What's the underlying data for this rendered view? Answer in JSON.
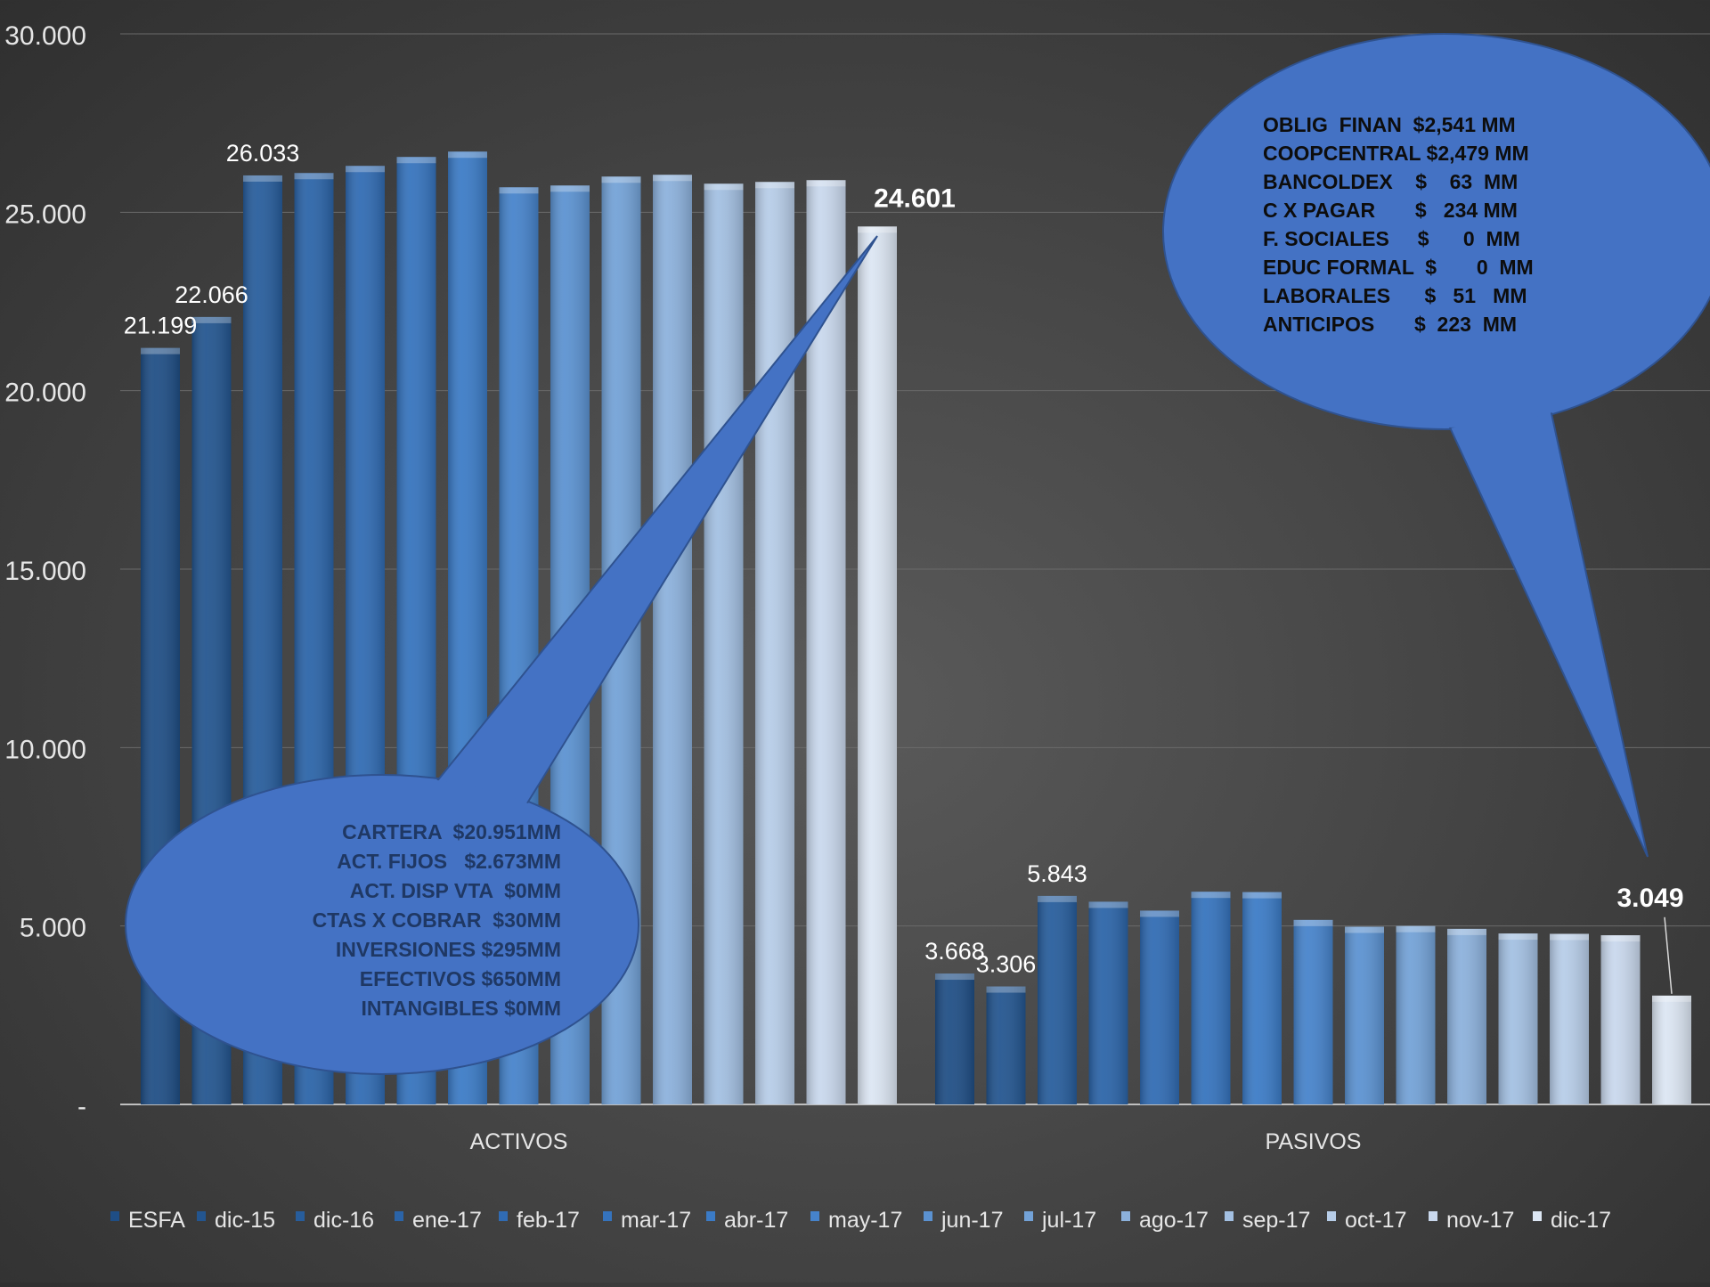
{
  "chart_data": {
    "type": "bar",
    "categories": [
      "ACTIVOS",
      "PASIVOS"
    ],
    "series": [
      {
        "name": "ESFA",
        "color": "#1f4e85",
        "values": [
          21199,
          3668
        ]
      },
      {
        "name": "dic-15",
        "color": "#23558f",
        "values": [
          22066,
          3306
        ]
      },
      {
        "name": "dic-16",
        "color": "#275d9c",
        "values": [
          26033,
          5843
        ]
      },
      {
        "name": "ene-17",
        "color": "#2b64a8",
        "values": [
          26100,
          5680
        ]
      },
      {
        "name": "feb-17",
        "color": "#306bb3",
        "values": [
          26300,
          5430
        ]
      },
      {
        "name": "mar-17",
        "color": "#3573bd",
        "values": [
          26550,
          5960
        ]
      },
      {
        "name": "abr-17",
        "color": "#3b7bc6",
        "values": [
          26700,
          5950
        ]
      },
      {
        "name": "may-17",
        "color": "#4683cb",
        "values": [
          25700,
          5170
        ]
      },
      {
        "name": "jun-17",
        "color": "#5b92d1",
        "values": [
          25750,
          4980
        ]
      },
      {
        "name": "jul-17",
        "color": "#73a2d7",
        "values": [
          26000,
          5000
        ]
      },
      {
        "name": "ago-17",
        "color": "#8cb1dc",
        "values": [
          26050,
          4920
        ]
      },
      {
        "name": "sep-17",
        "color": "#a3c0e2",
        "values": [
          25800,
          4790
        ]
      },
      {
        "name": "oct-17",
        "color": "#b7cde8",
        "values": [
          25850,
          4780
        ]
      },
      {
        "name": "nov-17",
        "color": "#c9d8ed",
        "values": [
          25900,
          4740
        ]
      },
      {
        "name": "dic-17",
        "color": "#dce6f3",
        "values": [
          24601,
          3049
        ]
      }
    ],
    "data_labels": [
      {
        "category": 0,
        "series": 0,
        "text": "21.199",
        "bold": false
      },
      {
        "category": 0,
        "series": 1,
        "text": "22.066",
        "bold": false
      },
      {
        "category": 0,
        "series": 2,
        "text": "26.033",
        "bold": false
      },
      {
        "category": 0,
        "series": 14,
        "text": "24.601",
        "bold": true
      },
      {
        "category": 1,
        "series": 0,
        "text": "3.668",
        "bold": false
      },
      {
        "category": 1,
        "series": 1,
        "text": "3.306",
        "bold": false
      },
      {
        "category": 1,
        "series": 2,
        "text": "5.843",
        "bold": false
      },
      {
        "category": 1,
        "series": 14,
        "text": "3.049",
        "bold": true
      }
    ],
    "ylim": [
      0,
      30000
    ],
    "yticks": [
      {
        "value": 0,
        "label": "-"
      },
      {
        "value": 5000,
        "label": "5.000"
      },
      {
        "value": 10000,
        "label": "10.000"
      },
      {
        "value": 15000,
        "label": "15.000"
      },
      {
        "value": 20000,
        "label": "20.000"
      },
      {
        "value": 25000,
        "label": "25.000"
      },
      {
        "value": 30000,
        "label": "30.000"
      }
    ],
    "grid": true,
    "legend": "bottom",
    "title": "",
    "xlabel": "",
    "ylabel": ""
  },
  "callouts": [
    {
      "name": "activos-callout",
      "color": "#4472c4",
      "text_color": "#1f3864",
      "lines": [
        "CARTERA  $20.951MM",
        "ACT. FIJOS   $2.673MM",
        "ACT. DISP VTA  $0MM",
        "CTAS X COBRAR  $30MM",
        "INVERSIONES $295MM",
        "EFECTIVOS $650MM",
        "INTANGIBLES $0MM"
      ]
    },
    {
      "name": "pasivos-callout",
      "color": "#4472c4",
      "text_color": "#0d0d0d",
      "lines": [
        "OBLIG  FINAN  $2,541 MM",
        "COOPCENTRAL $2,479 MM",
        "BANCOLDEX    $    63  MM",
        "C X PAGAR       $   234 MM",
        "F. SOCIALES     $      0  MM",
        "EDUC FORMAL  $       0  MM",
        "LABORALES      $   51   MM",
        "ANTICIPOS       $  223  MM"
      ]
    }
  ]
}
